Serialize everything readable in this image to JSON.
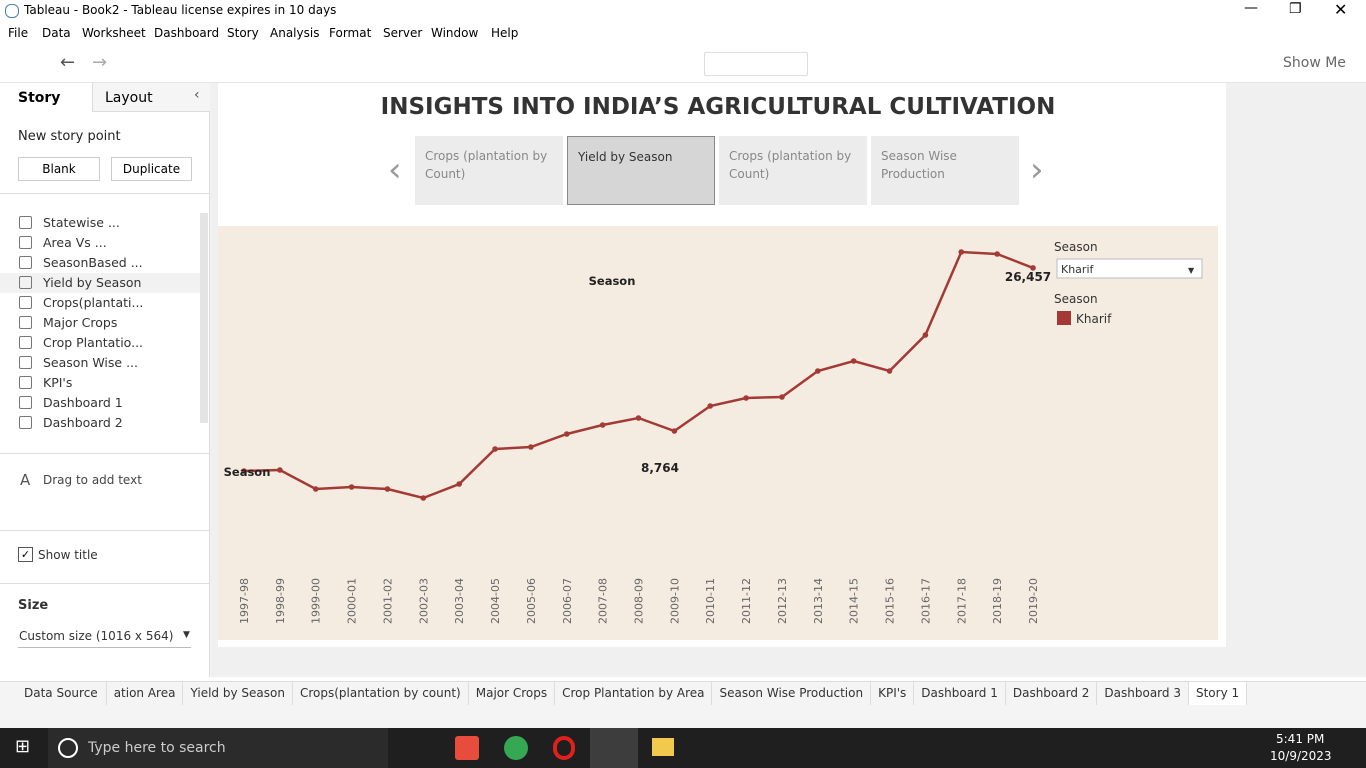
{
  "window": {
    "title": "Tableau - Book2 - Tableau license expires in 10 days"
  },
  "menu": [
    "File",
    "Data",
    "Worksheet",
    "Dashboard",
    "Story",
    "Analysis",
    "Format",
    "Server",
    "Window",
    "Help"
  ],
  "toolbar": {
    "show_me": "Show Me"
  },
  "side_pane": {
    "tabs": [
      "Story",
      "Layout"
    ],
    "new_story_point": "New story point",
    "buttons": [
      "Blank",
      "Duplicate"
    ],
    "sheets": [
      "Statewise ...",
      "Area Vs ...",
      "SeasonBased ...",
      "Yield by Season",
      "Crops(plantati...",
      "Major Crops",
      "Crop Plantatio...",
      "Season Wise ...",
      "KPI's",
      "Dashboard 1",
      "Dashboard 2"
    ],
    "drag_text": "Drag to add text",
    "show_title": "Show title",
    "size_label": "Size",
    "size_value": "Custom size (1016 x 564)"
  },
  "story": {
    "title": "INSIGHTS INTO INDIA’S AGRICULTURAL CULTIVATION",
    "points": [
      "Crops (plantation by Count)",
      "Yield by Season",
      "Crops (plantation by Count)",
      "Season Wise Production"
    ]
  },
  "chart_data": {
    "type": "line",
    "categories": [
      "1997-98",
      "1998-99",
      "1999-00",
      "2000-01",
      "2001-02",
      "2002-03",
      "2003-04",
      "2004-05",
      "2005-06",
      "2006-07",
      "2007-08",
      "2008-09",
      "2009-10",
      "2010-11",
      "2011-12",
      "2012-13",
      "2013-14",
      "2014-15",
      "2015-16",
      "2016-17",
      "2017-18",
      "2018-19",
      "2019-20"
    ],
    "series": [
      {
        "name": "Kharif",
        "color": "#a33a35",
        "values": [
          10841,
          10917,
          9456,
          9610,
          9456,
          8764,
          9841,
          12532,
          12686,
          13686,
          14378,
          14916,
          13916,
          15839,
          16454,
          16531,
          18530,
          19299,
          18530,
          21299,
          27681,
          27527,
          26457
        ],
        "value_labels": [
          null,
          null,
          null,
          null,
          null,
          "8,764",
          null,
          null,
          null,
          null,
          null,
          null,
          null,
          null,
          null,
          null,
          null,
          null,
          null,
          null,
          null,
          null,
          "26,457"
        ]
      }
    ],
    "annotations": [
      "Season",
      "Season"
    ],
    "filter": {
      "title": "Season",
      "value": "Kharif"
    },
    "legend": {
      "title": "Season"
    }
  },
  "tabs": [
    "Data Source",
    "ation Area",
    "Yield by Season",
    "Crops(plantation by count)",
    "Major Crops",
    "Crop Plantation by Area",
    "Season Wise Production",
    "KPI's",
    "Dashboard 1",
    "Dashboard 2",
    "Dashboard 3",
    "Story 1"
  ],
  "taskbar": {
    "search": "Type here to search",
    "time": "5:41 PM",
    "date": "10/9/2023"
  }
}
